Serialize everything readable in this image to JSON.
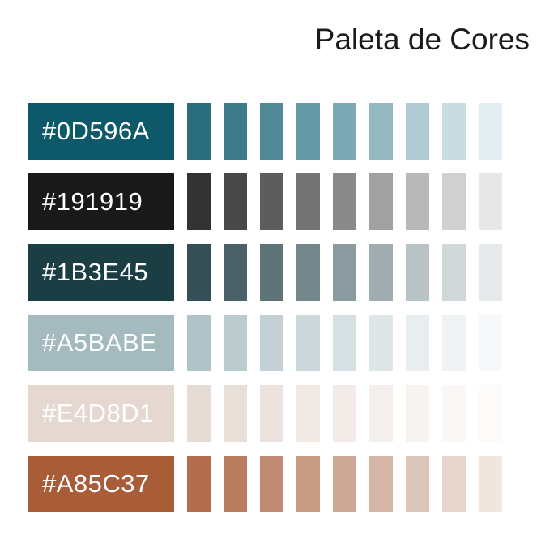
{
  "title": "Paleta de Cores",
  "colors": [
    {
      "hex": "#0D596A",
      "text_color": "#ffffff",
      "tints": [
        "#2a6d7c",
        "#3d7b89",
        "#518a97",
        "#6599a5",
        "#7ca9b3",
        "#93b8c1",
        "#afcbd1",
        "#cadcdf",
        "#e4eef0"
      ]
    },
    {
      "hex": "#191919",
      "text_color": "#ffffff",
      "tints": [
        "#333333",
        "#484848",
        "#5d5d5d",
        "#737373",
        "#8a8a8a",
        "#a1a1a1",
        "#b8b8b8",
        "#d0d0d0",
        "#e7e7e7"
      ]
    },
    {
      "hex": "#1B3E45",
      "text_color": "#ffffff",
      "tints": [
        "#344f55",
        "#4a6267",
        "#5f7479",
        "#74878b",
        "#8a9a9e",
        "#a0adb0",
        "#b8c3c5",
        "#d0d8d9",
        "#e6eaeb"
      ]
    },
    {
      "hex": "#A5BABE",
      "text_color": "#ffffff",
      "tints": [
        "#b1c3c7",
        "#bccbce",
        "#c4d1d4",
        "#cdd8da",
        "#d6dfe1",
        "#dfe6e8",
        "#e8eef0",
        "#eff3f4",
        "#f6f8f9"
      ]
    },
    {
      "hex": "#E4D8D1",
      "text_color": "#ffffff",
      "tints": [
        "#e6dcd6",
        "#e9dfd9",
        "#ece3de",
        "#efe8e3",
        "#f2ebe7",
        "#f4efec",
        "#f7f3f1",
        "#faf7f6",
        "#fcfbfa"
      ]
    },
    {
      "hex": "#A85C37",
      "text_color": "#ffffff",
      "tints": [
        "#b26e4e",
        "#b97d60",
        "#c08b72",
        "#c79a84",
        "#cda995",
        "#d4b6a7",
        "#dcc6ba",
        "#e6d6cd",
        "#f0e6e0"
      ]
    }
  ]
}
